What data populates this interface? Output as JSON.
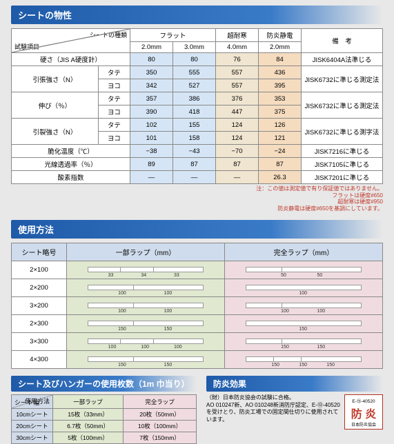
{
  "sections": {
    "properties": "シートの物性",
    "usage": "使用方法",
    "sheets": "シート及びハンガーの使用枚数（1m 巾当り）",
    "fire": "防炎効果"
  },
  "table1": {
    "diag_top": "シートの種類",
    "diag_bottom": "試験項目",
    "headers": {
      "flat": "フラット",
      "cold": "超耐寒",
      "anti": "防炎静電",
      "note": "備　考"
    },
    "subheaders": [
      "2.0mm",
      "3.0mm",
      "4.0mm",
      "2.0mm"
    ],
    "rows": [
      {
        "label": "硬さ（JIS A硬度計）",
        "sub": null,
        "flat1": "80",
        "flat2": "80",
        "cold": "76",
        "anti": "84",
        "note": "JISK6404A法準じる"
      },
      {
        "label": "引張強さ（N）",
        "sub": "タテ",
        "flat1": "350",
        "flat2": "555",
        "cold": "557",
        "anti": "436",
        "note": "JISK6732に準じる測定法",
        "rowspan": 2
      },
      {
        "sub": "ヨコ",
        "flat1": "342",
        "flat2": "527",
        "cold": "557",
        "anti": "395"
      },
      {
        "label": "伸び（％）",
        "sub": "タテ",
        "flat1": "357",
        "flat2": "386",
        "cold": "376",
        "anti": "353",
        "note": "JISK6732に準じる測定法",
        "rowspan": 2
      },
      {
        "sub": "ヨコ",
        "flat1": "390",
        "flat2": "418",
        "cold": "447",
        "anti": "375"
      },
      {
        "label": "引裂強さ（N）",
        "sub": "タテ",
        "flat1": "102",
        "flat2": "155",
        "cold": "124",
        "anti": "126",
        "note": "JISK6732に準じる測字法",
        "rowspan": 2
      },
      {
        "sub": "ヨコ",
        "flat1": "101",
        "flat2": "158",
        "cold": "124",
        "anti": "121"
      },
      {
        "label": "脆化温度（℃）",
        "flat1": "−38",
        "flat2": "−43",
        "cold": "−70",
        "anti": "−24",
        "note": "JISK7216に準じる"
      },
      {
        "label": "光線透過率（％）",
        "flat1": "89",
        "flat2": "87",
        "cold": "87",
        "anti": "87",
        "note": "JISK7105に準じる"
      },
      {
        "label": "酸素指数",
        "flat1": "—",
        "flat2": "—",
        "cold": "—",
        "anti": "26.3",
        "note": "JISK7201に準じる"
      }
    ],
    "footnote": "注：この値は測定値で有り保証値ではありません。\nフラットは硬度#650\n超耐寒は硬度#950\n防炎静電は硬度#650を基調にしています。"
  },
  "table2": {
    "headers": [
      "シート略号",
      "一部ラップ（mm）",
      "完全ラップ（mm）"
    ],
    "rows": [
      "2×100",
      "2×200",
      "3×200",
      "2×300",
      "3×300",
      "4×300"
    ],
    "partial_labels": {
      "0": [
        "33",
        "34",
        "33"
      ],
      "1": [
        "100",
        "100"
      ],
      "2": [
        "100",
        "100"
      ],
      "3": [
        "150",
        "150"
      ],
      "4": [
        "100",
        "100",
        "100"
      ],
      "5": [
        "150",
        "150"
      ]
    },
    "full_labels": {
      "0": [
        "50",
        "50"
      ],
      "1": [
        "100"
      ],
      "2": [
        "100",
        "100"
      ],
      "3": [
        "150"
      ],
      "4": [
        "150",
        "150"
      ],
      "5": [
        "150",
        "150",
        "150"
      ]
    }
  },
  "table3": {
    "row_h": "使用方法",
    "col_h": [
      "シート幅",
      "一部ラップ",
      "完全ラップ"
    ],
    "rows": [
      [
        "10cmシート",
        "15枚（33mm）",
        "20枚（50mm）"
      ],
      [
        "20cmシート",
        "6.7枚（50mm）",
        "10枚（100mm）"
      ],
      [
        "30cmシート",
        "5枚（100mm）",
        "7枚（150mm）"
      ]
    ]
  },
  "fire": {
    "text": "（財）日本防炎協会の試験に合格。\nAO 010247新、AO 010248新消防庁認定、E-⑬-40520を受けとり、防炎工場での固定間仕切りに使用されています。",
    "code": "E-⑬-40520",
    "char": "防 炎",
    "org": "日本防炎協会"
  }
}
